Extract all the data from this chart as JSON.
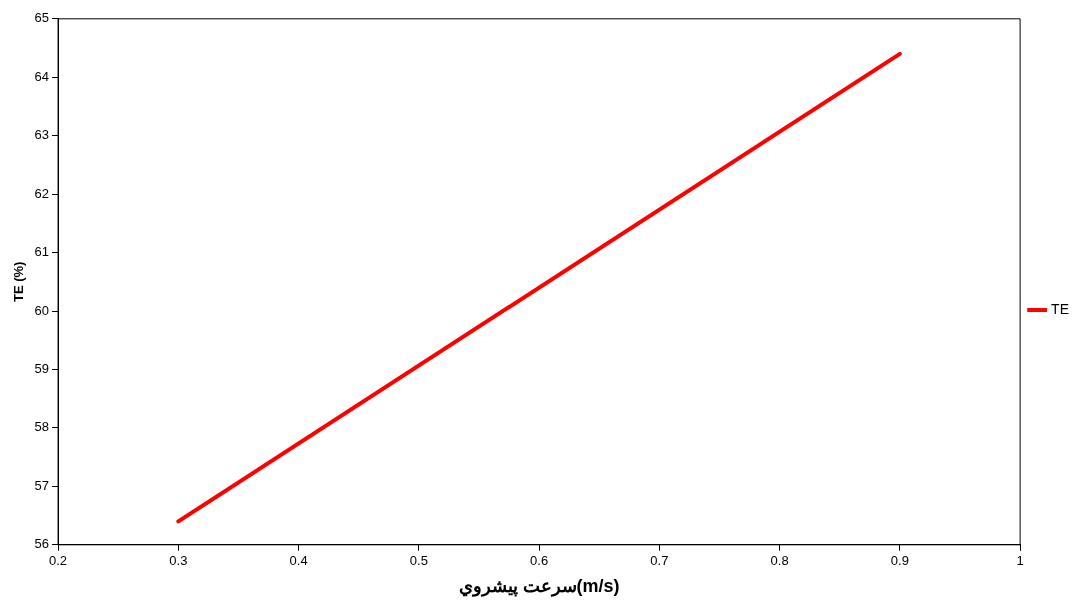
{
  "chart_data": {
    "type": "line",
    "xlabel": "سرعت پيشروي(m/s)",
    "ylabel": "TE (%)",
    "x": [
      0.3,
      0.9
    ],
    "series": [
      {
        "name": "TE",
        "color": "#ff0000",
        "values": [
          56.4,
          64.4
        ]
      }
    ],
    "xlim": [
      0.2,
      1
    ],
    "xticks": [
      0.2,
      0.3,
      0.4,
      0.5,
      0.6,
      0.7,
      0.8,
      0.9,
      1
    ],
    "ylim": [
      56,
      65
    ],
    "yticks": [
      56,
      57,
      58,
      59,
      60,
      61,
      62,
      63,
      64,
      65
    ],
    "grid": false,
    "legend": "right",
    "marker": "none",
    "line_style": "solid"
  }
}
